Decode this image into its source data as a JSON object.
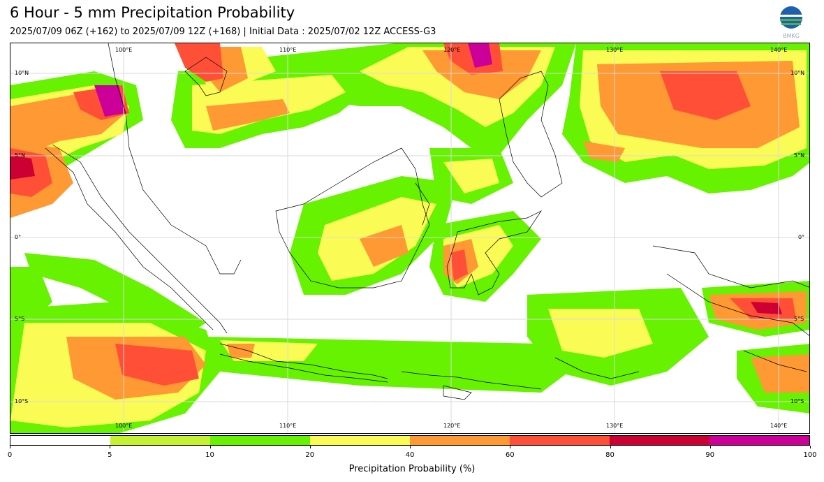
{
  "header": {
    "title": "6 Hour - 5 mm Precipitation Probability",
    "subtitle": "2025/07/09 06Z (+162) to 2025/07/09 12Z (+168) | Initial Data : 2025/07/02 12Z ACCESS-G3",
    "logo_text": "BMKG"
  },
  "map": {
    "lon_labels": [
      "100°E",
      "110°E",
      "120°E",
      "130°E",
      "140°E"
    ],
    "lat_labels": [
      "10°N",
      "5°N",
      "0°",
      "5°S",
      "10°S"
    ],
    "gridlines": true
  },
  "legend": {
    "label": "Precipitation Probability (%)",
    "ticks": [
      "0",
      "5",
      "10",
      "20",
      "40",
      "60",
      "80",
      "90",
      "100"
    ],
    "colors": [
      "#ffffff",
      "#c4f233",
      "#66f200",
      "#fbfb55",
      "#ff9933",
      "#ff4f36",
      "#cc0033",
      "#cc0099"
    ]
  }
}
